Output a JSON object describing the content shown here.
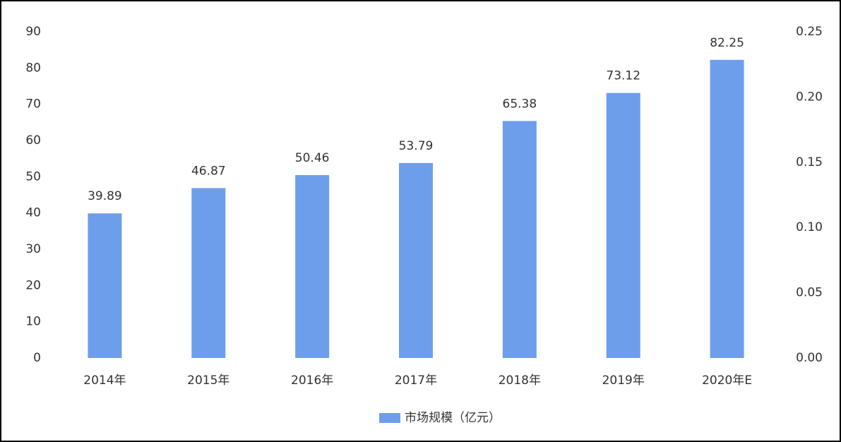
{
  "chart_data": {
    "type": "bar",
    "categories": [
      "2014年",
      "2015年",
      "2016年",
      "2017年",
      "2018年",
      "2019年",
      "2020年E"
    ],
    "series": [
      {
        "name": "市场规模（亿元）",
        "color": "#6d9eeb",
        "values": [
          39.89,
          46.87,
          50.46,
          53.79,
          65.38,
          73.12,
          82.25
        ]
      }
    ],
    "ylim": [
      0,
      90
    ],
    "yticks": [
      0,
      10,
      20,
      30,
      40,
      50,
      60,
      70,
      80,
      90
    ],
    "y2lim": [
      0,
      0.25
    ],
    "y2ticks": [
      {
        "value": 0,
        "label": "0.00"
      },
      {
        "value": 0.05,
        "label": "0.05"
      },
      {
        "value": 0.1,
        "label": "0.10"
      },
      {
        "value": 0.15,
        "label": "0.15"
      },
      {
        "value": 0.2,
        "label": "0.20"
      },
      {
        "value": 0.25,
        "label": "0.25"
      }
    ],
    "grid": false,
    "legend": "bottom"
  }
}
